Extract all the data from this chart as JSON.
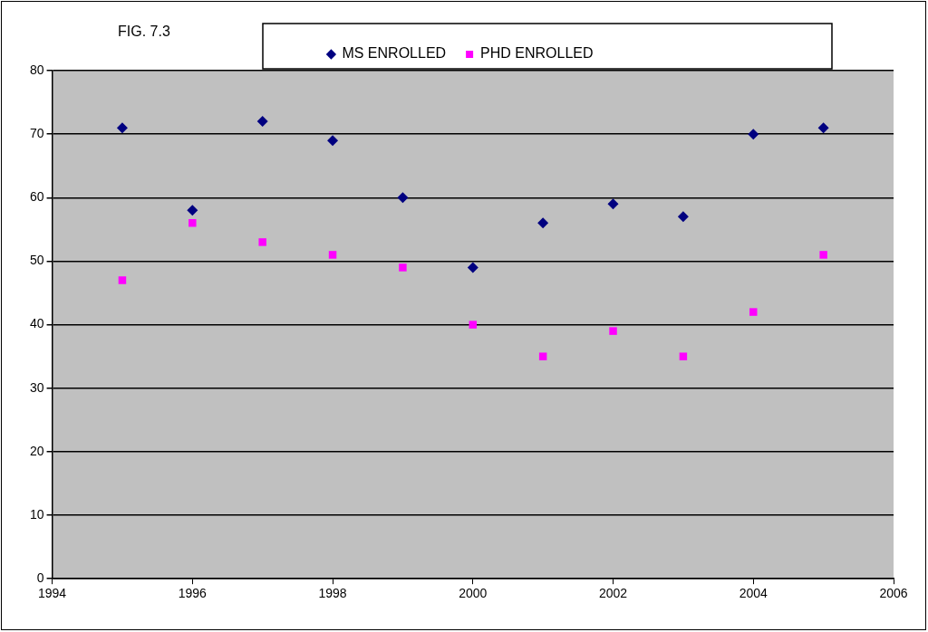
{
  "chart_data": {
    "type": "scatter",
    "title": "FIG. 7.3",
    "series": [
      {
        "name": "MS ENROLLED",
        "color": "#000080",
        "marker": "diamond",
        "x": [
          1995,
          1996,
          1997,
          1998,
          1999,
          2000,
          2001,
          2002,
          2003,
          2004,
          2005
        ],
        "values": [
          71,
          58,
          72,
          69,
          60,
          49,
          56,
          59,
          57,
          70,
          71
        ]
      },
      {
        "name": "PHD ENROLLED",
        "color": "#ff00ff",
        "marker": "square",
        "x": [
          1995,
          1996,
          1997,
          1998,
          1999,
          2000,
          2001,
          2002,
          2003,
          2004,
          2005
        ],
        "values": [
          47,
          56,
          53,
          51,
          49,
          40,
          35,
          39,
          35,
          42,
          51
        ]
      }
    ],
    "xlim": [
      1994,
      2006
    ],
    "xticks": [
      1994,
      1996,
      1998,
      2000,
      2002,
      2004,
      2006
    ],
    "ylim": [
      0,
      80
    ],
    "yticks": [
      0,
      10,
      20,
      30,
      40,
      50,
      60,
      70,
      80
    ],
    "grid": "y",
    "legend": "top"
  }
}
